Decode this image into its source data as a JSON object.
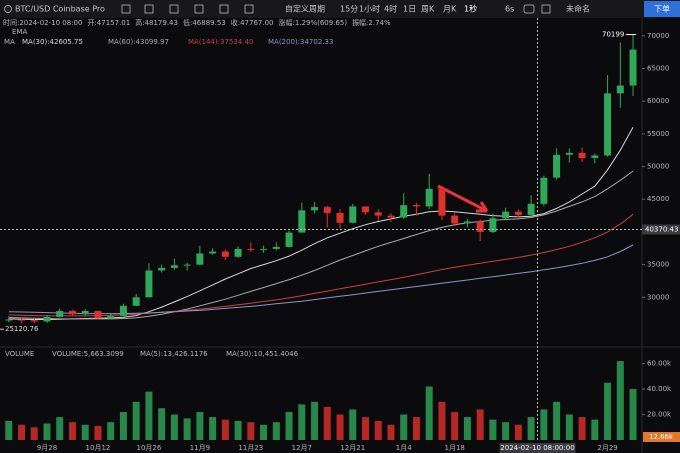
{
  "toolbar": {
    "symbol": "BTC/USD Coinbase Pro",
    "period_menu": "自定义周期",
    "periods": [
      "15分",
      "1小时",
      "4时",
      "1日",
      "周K",
      "月K",
      "1秒"
    ],
    "refresh": "6s",
    "layout_name": "未命名",
    "order_button": "下单"
  },
  "info_row": [
    "时间:2024-02-10 08:00",
    "开:47157.01",
    "高:48179.43",
    "低:46889.53",
    "收:47767.00",
    "涨幅:1.29%(609.65)",
    "振幅:2.74%"
  ],
  "indicator_rows": {
    "ema": "EMA",
    "ma": "MA"
  },
  "chart_data": {
    "type": "candlestick",
    "up_color": "#2fa85a",
    "down_color": "#e0302c",
    "grid": false,
    "categories": [
      null,
      null,
      null,
      "9月28",
      null,
      null,
      null,
      "10月12",
      null,
      null,
      null,
      "10月26",
      null,
      null,
      null,
      "11月9",
      null,
      null,
      null,
      "11月23",
      null,
      null,
      null,
      "12月7",
      null,
      null,
      null,
      "12月21",
      null,
      null,
      null,
      "1月4",
      null,
      null,
      null,
      "1月18",
      null,
      null,
      null,
      null,
      null,
      null,
      null,
      null,
      null,
      null,
      null,
      "2月29",
      null,
      null
    ],
    "open": [
      26500,
      26600,
      26500,
      26300,
      27000,
      27900,
      27400,
      27900,
      26800,
      27150,
      28700,
      30000,
      34100,
      34500,
      34900,
      35000,
      36700,
      37000,
      36200,
      37400,
      37300,
      37400,
      37700,
      39900,
      43300,
      43800,
      42900,
      41400,
      43900,
      43000,
      42500,
      42200,
      44100,
      43900,
      46600,
      42500,
      41300,
      41600,
      40000,
      42100,
      43100,
      42600,
      44300,
      48300,
      51800,
      52100,
      51300,
      51700,
      61200,
      62400
    ],
    "high": [
      27100,
      26900,
      26800,
      27300,
      28300,
      28100,
      28200,
      27900,
      27500,
      29000,
      30500,
      35200,
      35000,
      35900,
      35300,
      37900,
      37500,
      37300,
      37800,
      38400,
      37900,
      38400,
      40200,
      44500,
      44600,
      44000,
      43500,
      44300,
      43800,
      43500,
      42900,
      45900,
      44400,
      48900,
      46700,
      43000,
      42000,
      41900,
      42800,
      43700,
      43500,
      45600,
      48600,
      52800,
      52800,
      52900,
      52000,
      64000,
      69000,
      70200
    ],
    "low": [
      26200,
      26000,
      26000,
      26100,
      26900,
      27200,
      27200,
      26600,
      26600,
      27100,
      28600,
      30000,
      33800,
      34200,
      34100,
      34900,
      36500,
      35700,
      36000,
      36900,
      36800,
      37200,
      37600,
      39900,
      42800,
      40700,
      40500,
      41300,
      42600,
      41700,
      41500,
      42000,
      42500,
      43500,
      41800,
      40900,
      40700,
      38600,
      39800,
      41800,
      42100,
      42400,
      43900,
      48000,
      50600,
      50700,
      50500,
      51500,
      59000,
      60800
    ],
    "close": [
      26600,
      26500,
      26300,
      27000,
      27900,
      27400,
      27900,
      26800,
      27150,
      28700,
      30000,
      34100,
      34500,
      34900,
      35000,
      36700,
      37000,
      36200,
      37400,
      37300,
      37400,
      37700,
      39900,
      43300,
      43800,
      42900,
      41400,
      43900,
      43000,
      42500,
      42200,
      44100,
      43900,
      46600,
      42500,
      41300,
      41600,
      40000,
      42100,
      43100,
      42600,
      44300,
      48300,
      51800,
      52100,
      51300,
      51700,
      61200,
      62400,
      67900
    ],
    "ylim": [
      22700,
      71200
    ],
    "yticks": [
      30000,
      35000,
      45000,
      50000,
      55000,
      60000,
      65000,
      70000
    ],
    "series": [
      {
        "name": "MA(30):42605.75",
        "color": "#d8d8d8",
        "values": [
          26700,
          26650,
          26600,
          26600,
          26650,
          26700,
          26750,
          26800,
          26850,
          26950,
          27200,
          27800,
          28500,
          29300,
          30100,
          31000,
          31900,
          32800,
          33600,
          34400,
          35000,
          35600,
          36300,
          37200,
          38200,
          39100,
          39800,
          40500,
          41100,
          41600,
          42000,
          42400,
          42700,
          43100,
          43200,
          43100,
          42900,
          42700,
          42500,
          42400,
          42300,
          42400,
          42800,
          43600,
          44600,
          45800,
          47000,
          49500,
          52500,
          56000
        ]
      },
      {
        "name": "MA(60):43099.97",
        "color": "#a9a9a9",
        "values": [
          26900,
          26850,
          26800,
          26750,
          26700,
          26700,
          26700,
          26700,
          26700,
          26750,
          26850,
          27100,
          27400,
          27800,
          28200,
          28700,
          29200,
          29700,
          30300,
          30900,
          31500,
          32100,
          32700,
          33400,
          34100,
          34900,
          35700,
          36400,
          37100,
          37800,
          38400,
          39000,
          39600,
          40200,
          40700,
          41100,
          41400,
          41600,
          41800,
          41900,
          42000,
          42200,
          42600,
          43200,
          43900,
          44600,
          45400,
          46600,
          47900,
          49300
        ]
      },
      {
        "name": "MA(144):37534.40",
        "color": "#c9413f",
        "values": [
          27300,
          27250,
          27200,
          27150,
          27150,
          27150,
          27150,
          27200,
          27250,
          27300,
          27400,
          27550,
          27700,
          27850,
          28000,
          28200,
          28400,
          28600,
          28850,
          29100,
          29350,
          29600,
          29900,
          30250,
          30600,
          30950,
          31300,
          31650,
          32000,
          32350,
          32700,
          33050,
          33450,
          33850,
          34250,
          34600,
          34900,
          35200,
          35500,
          35800,
          36100,
          36450,
          36850,
          37300,
          37800,
          38400,
          39100,
          40000,
          41200,
          42700
        ]
      },
      {
        "name": "MA(200):34702.33",
        "color": "#8f93c8",
        "values": [
          27800,
          27750,
          27700,
          27650,
          27600,
          27550,
          27500,
          27500,
          27500,
          27500,
          27550,
          27600,
          27700,
          27800,
          27900,
          28000,
          28150,
          28300,
          28450,
          28600,
          28800,
          29000,
          29200,
          29400,
          29650,
          29900,
          30150,
          30400,
          30650,
          30900,
          31150,
          31400,
          31650,
          31900,
          32150,
          32400,
          32650,
          32900,
          33150,
          33400,
          33650,
          33900,
          34200,
          34500,
          34850,
          35200,
          35650,
          36200,
          37000,
          38000
        ]
      }
    ],
    "last_price": 70199,
    "low_marker": 25120.76,
    "crosshair": {
      "price": 40370.43,
      "time": "2024-02-10 08:00:00"
    },
    "volume": {
      "title": "VOLUME",
      "legend": [
        "VOLUME:5,663.3099",
        "MA(5):13,426.1176",
        "MA(30):10,451.4046"
      ],
      "values": [
        15000,
        12000,
        10000,
        13000,
        18000,
        14000,
        12000,
        11000,
        14000,
        22000,
        30000,
        38000,
        25000,
        20000,
        17000,
        22000,
        18000,
        16000,
        15000,
        14000,
        12000,
        14000,
        22000,
        28000,
        30000,
        26000,
        20000,
        24000,
        18000,
        15000,
        12000,
        20000,
        18000,
        42000,
        30000,
        22000,
        18000,
        24000,
        16000,
        14000,
        12000,
        18000,
        24000,
        30000,
        20000,
        18000,
        16000,
        45000,
        62000,
        40000
      ],
      "ylim": [
        0,
        66000
      ],
      "yticks": [
        {
          "value": 20000,
          "label": "20.00k"
        },
        {
          "value": 40000,
          "label": "40.00k"
        },
        {
          "value": 60000,
          "label": "60.00k"
        }
      ],
      "badge": "12.66k"
    }
  }
}
